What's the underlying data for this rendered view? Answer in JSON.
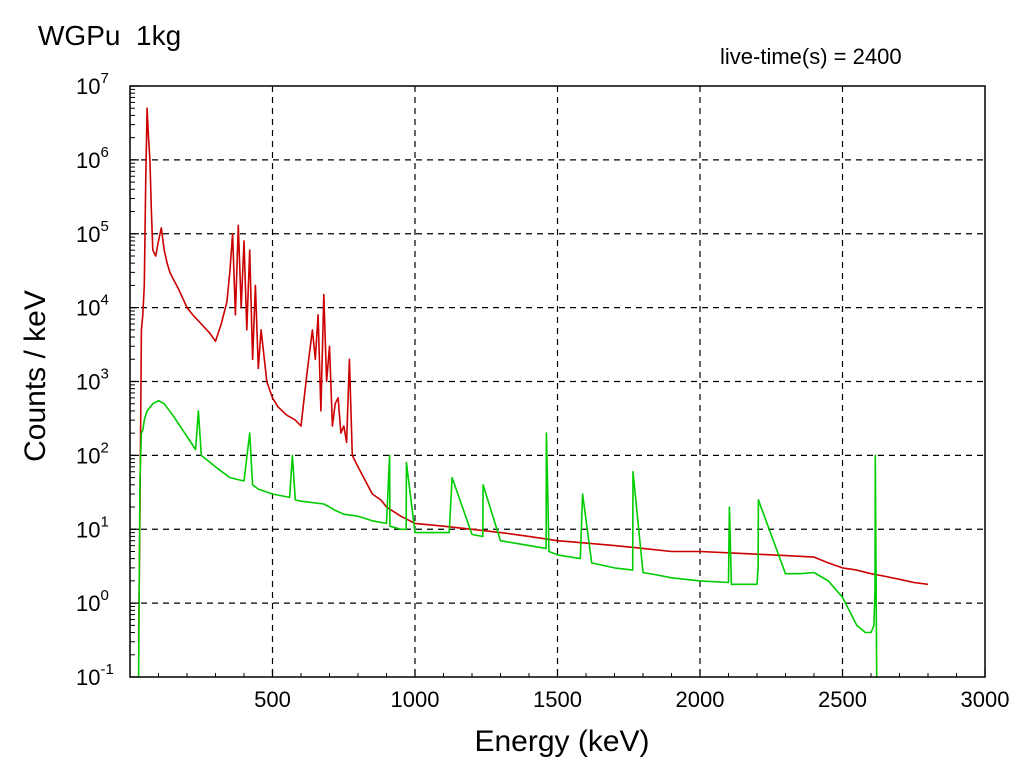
{
  "chart_data": {
    "type": "line",
    "title": "WGPu  1kg",
    "annotation": "live-time(s) = 2400",
    "xlabel": "Energy (keV)",
    "ylabel": "Counts / keV",
    "xlim": [
      0,
      3000
    ],
    "ylim_exponents": [
      -1,
      7
    ],
    "yscale": "log",
    "grid": true,
    "grid_style": "dashed",
    "x_ticks": [
      500,
      1000,
      1500,
      2000,
      2500,
      3000
    ],
    "y_tick_exponents": [
      -1,
      0,
      1,
      2,
      3,
      4,
      5,
      6,
      7
    ],
    "y_tick_base": "10",
    "series": [
      {
        "color": "#cc0000",
        "x": [
          30,
          35,
          40,
          45,
          50,
          55,
          60,
          65,
          70,
          75,
          80,
          90,
          100,
          110,
          120,
          130,
          140,
          150,
          170,
          200,
          220,
          250,
          280,
          300,
          320,
          340,
          350,
          360,
          370,
          380,
          390,
          400,
          410,
          420,
          430,
          440,
          450,
          460,
          480,
          500,
          520,
          550,
          580,
          600,
          620,
          640,
          650,
          660,
          670,
          680,
          690,
          700,
          710,
          720,
          730,
          740,
          750,
          760,
          770,
          780,
          800,
          820,
          850,
          880,
          900,
          950,
          1000,
          1100,
          1200,
          1300,
          1400,
          1500,
          1600,
          1700,
          1800,
          1900,
          2000,
          2100,
          2200,
          2300,
          2400,
          2450,
          2500,
          2550,
          2600,
          2650,
          2700,
          2750,
          2800
        ],
        "y": [
          0.3,
          20,
          5000,
          8000,
          20000,
          500000,
          5000000,
          2000000,
          1000000,
          200000,
          60000,
          50000,
          80000,
          120000,
          60000,
          40000,
          30000,
          25000,
          18000,
          10000,
          8000,
          6000,
          4500,
          3500,
          6000,
          12000,
          30000,
          100000,
          8000,
          130000,
          10000,
          80000,
          5000,
          60000,
          2000,
          20000,
          1500,
          5000,
          1000,
          600,
          450,
          350,
          300,
          250,
          1200,
          5000,
          2000,
          8000,
          400,
          15000,
          1000,
          3000,
          250,
          500,
          600,
          200,
          250,
          150,
          2000,
          100,
          70,
          50,
          30,
          25,
          20,
          15,
          12,
          11,
          10,
          9,
          8,
          7,
          6.5,
          6,
          5.5,
          5,
          5,
          4.8,
          4.6,
          4.4,
          4.2,
          3.5,
          3,
          2.8,
          2.5,
          2.3,
          2.1,
          1.9,
          1.8
        ]
      },
      {
        "color": "#00cc00",
        "x": [
          30,
          35,
          40,
          45,
          50,
          55,
          60,
          80,
          100,
          120,
          150,
          200,
          230,
          240,
          250,
          300,
          350,
          400,
          420,
          430,
          450,
          500,
          560,
          570,
          580,
          600,
          680,
          700,
          720,
          750,
          800,
          850,
          900,
          911,
          912,
          950,
          969,
          970,
          1000,
          1100,
          1120,
          1130,
          1200,
          1238,
          1239,
          1300,
          1400,
          1460,
          1461,
          1470,
          1500,
          1580,
          1588,
          1620,
          1700,
          1764,
          1765,
          1800,
          1850,
          1900,
          2000,
          2100,
          2103,
          2110,
          2200,
          2204,
          2205,
          2300,
          2350,
          2400,
          2450,
          2500,
          2550,
          2580,
          2600,
          2610,
          2614,
          2615,
          2620,
          2625
        ],
        "y": [
          0.1,
          50,
          200,
          220,
          300,
          350,
          400,
          500,
          550,
          500,
          350,
          180,
          120,
          400,
          100,
          70,
          50,
          45,
          200,
          40,
          35,
          30,
          27,
          100,
          25,
          24,
          22,
          20,
          18,
          16,
          15,
          13,
          12,
          100,
          11,
          10,
          10,
          80,
          9,
          9,
          9,
          50,
          8.5,
          8,
          40,
          7,
          6,
          5.5,
          200,
          5,
          4.5,
          4,
          30,
          3.5,
          3,
          2.8,
          60,
          2.6,
          2.4,
          2.2,
          2,
          1.9,
          20,
          1.8,
          1.8,
          3,
          25,
          2.5,
          2.5,
          2.6,
          2,
          1.2,
          0.5,
          0.4,
          0.4,
          0.5,
          1.5,
          100,
          0.1,
          0.1
        ]
      }
    ]
  }
}
